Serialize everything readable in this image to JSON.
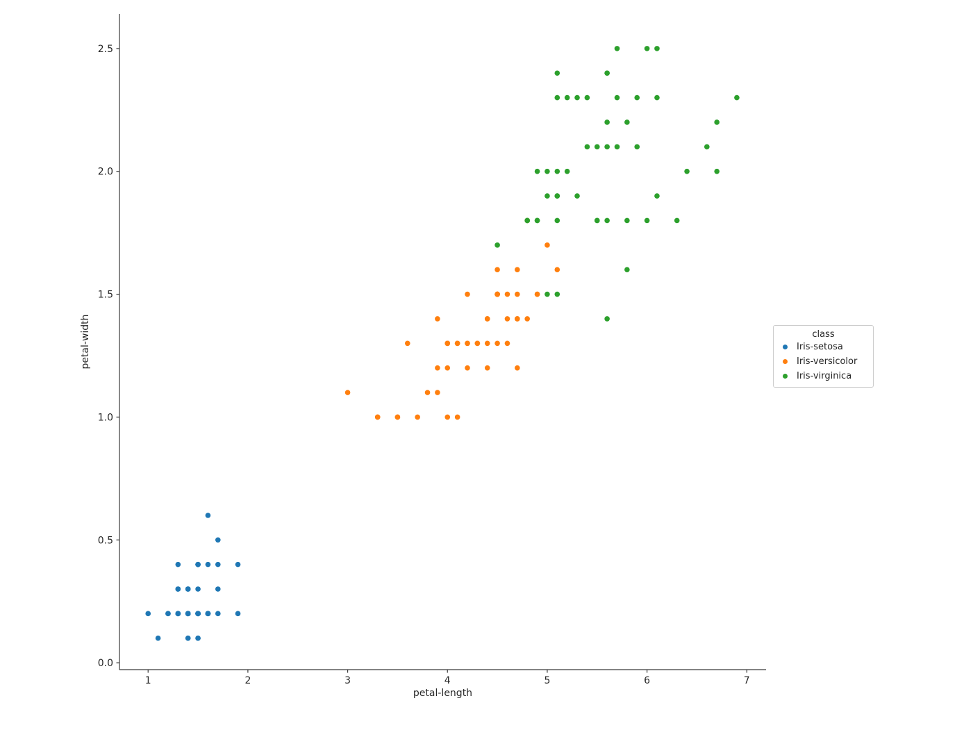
{
  "page": {
    "background": "#ffffff"
  },
  "chart_data": {
    "type": "scatter",
    "title": "",
    "xlabel": "petal-length",
    "ylabel": "petal-width",
    "xlim": [
      0.713,
      7.193
    ],
    "ylim": [
      -0.028,
      2.641
    ],
    "x_ticks": {
      "values": [
        1,
        2,
        3,
        4,
        5,
        6,
        7
      ],
      "labels": [
        "1",
        "2",
        "3",
        "4",
        "5",
        "6",
        "7"
      ]
    },
    "y_ticks": {
      "values": [
        0.0,
        0.5,
        1.0,
        1.5,
        2.0,
        2.5
      ],
      "labels": [
        "0.0",
        "0.5",
        "1.0",
        "1.5",
        "2.0",
        "2.5"
      ]
    },
    "grid": false,
    "legend": {
      "title": "class",
      "position": "outside-center-right"
    },
    "style": {
      "axis_color": "#3b3b3b",
      "text_color": "#262626",
      "legend_border_color": "#cccccc",
      "marker_radius": 3.8
    },
    "series": [
      {
        "name": "Iris-setosa",
        "color": "#1f77b4",
        "points": [
          [
            1.4,
            0.2
          ],
          [
            1.4,
            0.2
          ],
          [
            1.3,
            0.2
          ],
          [
            1.5,
            0.2
          ],
          [
            1.4,
            0.2
          ],
          [
            1.7,
            0.4
          ],
          [
            1.4,
            0.3
          ],
          [
            1.5,
            0.2
          ],
          [
            1.4,
            0.2
          ],
          [
            1.5,
            0.1
          ],
          [
            1.5,
            0.2
          ],
          [
            1.6,
            0.2
          ],
          [
            1.4,
            0.1
          ],
          [
            1.1,
            0.1
          ],
          [
            1.2,
            0.2
          ],
          [
            1.5,
            0.4
          ],
          [
            1.3,
            0.4
          ],
          [
            1.4,
            0.3
          ],
          [
            1.7,
            0.3
          ],
          [
            1.5,
            0.3
          ],
          [
            1.7,
            0.2
          ],
          [
            1.5,
            0.4
          ],
          [
            1.0,
            0.2
          ],
          [
            1.7,
            0.5
          ],
          [
            1.9,
            0.2
          ],
          [
            1.6,
            0.2
          ],
          [
            1.6,
            0.4
          ],
          [
            1.5,
            0.2
          ],
          [
            1.4,
            0.2
          ],
          [
            1.6,
            0.2
          ],
          [
            1.6,
            0.2
          ],
          [
            1.5,
            0.4
          ],
          [
            1.5,
            0.1
          ],
          [
            1.4,
            0.2
          ],
          [
            1.5,
            0.2
          ],
          [
            1.2,
            0.2
          ],
          [
            1.3,
            0.2
          ],
          [
            1.4,
            0.1
          ],
          [
            1.3,
            0.2
          ],
          [
            1.5,
            0.2
          ],
          [
            1.3,
            0.3
          ],
          [
            1.3,
            0.3
          ],
          [
            1.3,
            0.2
          ],
          [
            1.6,
            0.6
          ],
          [
            1.9,
            0.4
          ],
          [
            1.4,
            0.3
          ],
          [
            1.6,
            0.2
          ],
          [
            1.4,
            0.2
          ],
          [
            1.5,
            0.2
          ],
          [
            1.4,
            0.2
          ]
        ]
      },
      {
        "name": "Iris-versicolor",
        "color": "#ff7f0e",
        "points": [
          [
            4.7,
            1.4
          ],
          [
            4.5,
            1.5
          ],
          [
            4.9,
            1.5
          ],
          [
            4.0,
            1.3
          ],
          [
            4.6,
            1.5
          ],
          [
            4.5,
            1.3
          ],
          [
            4.7,
            1.6
          ],
          [
            3.3,
            1.0
          ],
          [
            4.6,
            1.3
          ],
          [
            3.9,
            1.4
          ],
          [
            3.5,
            1.0
          ],
          [
            4.2,
            1.5
          ],
          [
            4.0,
            1.0
          ],
          [
            4.7,
            1.4
          ],
          [
            3.6,
            1.3
          ],
          [
            4.4,
            1.4
          ],
          [
            4.5,
            1.5
          ],
          [
            4.1,
            1.0
          ],
          [
            4.5,
            1.5
          ],
          [
            3.9,
            1.1
          ],
          [
            4.8,
            1.8
          ],
          [
            4.0,
            1.3
          ],
          [
            4.9,
            1.5
          ],
          [
            4.7,
            1.2
          ],
          [
            4.3,
            1.3
          ],
          [
            4.4,
            1.4
          ],
          [
            4.8,
            1.4
          ],
          [
            5.0,
            1.7
          ],
          [
            4.5,
            1.5
          ],
          [
            3.5,
            1.0
          ],
          [
            3.8,
            1.1
          ],
          [
            3.7,
            1.0
          ],
          [
            3.9,
            1.2
          ],
          [
            5.1,
            1.6
          ],
          [
            4.5,
            1.5
          ],
          [
            4.5,
            1.6
          ],
          [
            4.7,
            1.5
          ],
          [
            4.4,
            1.3
          ],
          [
            4.1,
            1.3
          ],
          [
            4.0,
            1.3
          ],
          [
            4.4,
            1.2
          ],
          [
            4.6,
            1.4
          ],
          [
            4.0,
            1.2
          ],
          [
            3.3,
            1.0
          ],
          [
            4.2,
            1.3
          ],
          [
            4.2,
            1.2
          ],
          [
            4.2,
            1.3
          ],
          [
            4.3,
            1.3
          ],
          [
            3.0,
            1.1
          ],
          [
            4.1,
            1.3
          ]
        ]
      },
      {
        "name": "Iris-virginica",
        "color": "#2ca02c",
        "points": [
          [
            6.0,
            2.5
          ],
          [
            5.1,
            1.9
          ],
          [
            5.9,
            2.1
          ],
          [
            5.6,
            1.8
          ],
          [
            5.8,
            2.2
          ],
          [
            6.6,
            2.1
          ],
          [
            4.5,
            1.7
          ],
          [
            6.3,
            1.8
          ],
          [
            5.8,
            1.8
          ],
          [
            6.1,
            2.5
          ],
          [
            5.1,
            2.0
          ],
          [
            5.3,
            1.9
          ],
          [
            5.5,
            2.1
          ],
          [
            5.0,
            2.0
          ],
          [
            5.1,
            2.4
          ],
          [
            5.3,
            2.3
          ],
          [
            5.5,
            1.8
          ],
          [
            6.7,
            2.2
          ],
          [
            6.9,
            2.3
          ],
          [
            5.0,
            1.5
          ],
          [
            5.7,
            2.3
          ],
          [
            4.9,
            2.0
          ],
          [
            6.7,
            2.0
          ],
          [
            4.9,
            1.8
          ],
          [
            5.7,
            2.1
          ],
          [
            6.0,
            1.8
          ],
          [
            4.8,
            1.8
          ],
          [
            4.9,
            1.8
          ],
          [
            5.6,
            2.1
          ],
          [
            5.8,
            1.6
          ],
          [
            6.1,
            1.9
          ],
          [
            6.4,
            2.0
          ],
          [
            5.6,
            2.2
          ],
          [
            5.1,
            1.5
          ],
          [
            5.6,
            1.4
          ],
          [
            6.1,
            2.3
          ],
          [
            5.6,
            2.4
          ],
          [
            5.5,
            1.8
          ],
          [
            4.8,
            1.8
          ],
          [
            5.4,
            2.1
          ],
          [
            5.6,
            2.4
          ],
          [
            5.1,
            2.3
          ],
          [
            5.1,
            1.9
          ],
          [
            5.9,
            2.3
          ],
          [
            5.7,
            2.5
          ],
          [
            5.2,
            2.3
          ],
          [
            5.0,
            1.9
          ],
          [
            5.2,
            2.0
          ],
          [
            5.4,
            2.3
          ],
          [
            5.1,
            1.8
          ]
        ]
      }
    ]
  }
}
